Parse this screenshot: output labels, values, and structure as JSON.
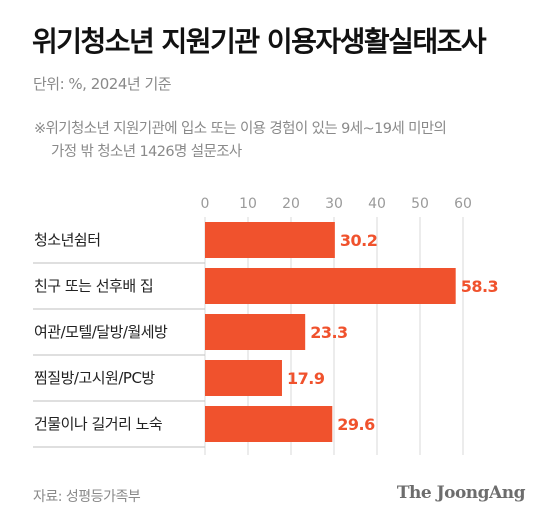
{
  "header": {
    "title": "위기청소년 지원기관 이용자생활실태조사",
    "unit": "단위: %, 2024년 기준",
    "note_line1": "※위기청소년 지원기관에 입소 또는 이용 경험이 있는 9세~19세 미만의",
    "note_line2": "가정 밖 청소년 1426명 설문조사"
  },
  "footer": {
    "source": "자료: 성평등가족부",
    "brand": "The JoongAng"
  },
  "colors": {
    "bar": "#f0522d",
    "value_label": "#f0522d",
    "grid": "#d9d9d9",
    "tick": "#9a9a9a",
    "row_divider": "#bfbfbf",
    "category_text": "#222222"
  },
  "chart_data": {
    "type": "bar",
    "orientation": "horizontal",
    "categories": [
      "청소년쉼터",
      "친구 또는 선후배 집",
      "여관/모텔/달방/월세방",
      "찜질방/고시원/PC방",
      "건물이나 길거리 노숙"
    ],
    "values": [
      30.2,
      58.3,
      23.3,
      17.9,
      29.6
    ],
    "value_labels": [
      "30.2",
      "58.3",
      "23.3",
      "17.9",
      "29.6"
    ],
    "xlim": [
      0,
      60
    ],
    "xticks": [
      0,
      10,
      20,
      30,
      40,
      50,
      60
    ],
    "xtick_labels": [
      "0",
      "10",
      "20",
      "30",
      "40",
      "50",
      "60"
    ],
    "grid": true
  }
}
